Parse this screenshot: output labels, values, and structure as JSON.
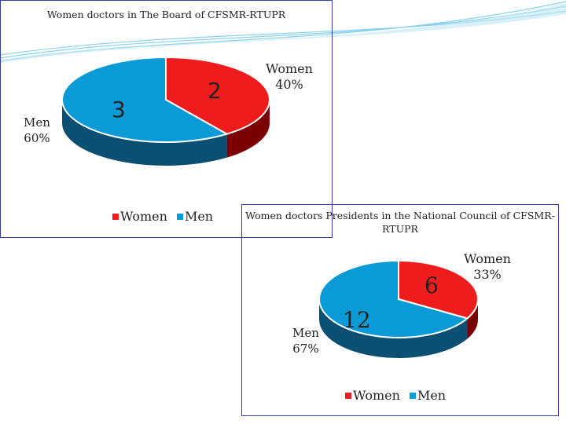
{
  "colors": {
    "women": "#ee1c1c",
    "women_side": "#7a0000",
    "men": "#0a9ad6",
    "men_side": "#0b4f72",
    "frame": "#3340a8"
  },
  "chart_data": [
    {
      "type": "pie",
      "title": "Women doctors in The Board of CFSMR-RTUPR",
      "categories": [
        "Women",
        "Men"
      ],
      "values": [
        2,
        3
      ],
      "value_labels": [
        "2",
        "3"
      ],
      "percent_labels": [
        {
          "name": "Women",
          "pct": "40%"
        },
        {
          "name": "Men",
          "pct": "60%"
        }
      ],
      "legend": [
        "Women",
        "Men"
      ],
      "legend_position": "bottom"
    },
    {
      "type": "pie",
      "title": "Women doctors Presidents in the National Council of CFSMR-RTUPR",
      "categories": [
        "Women",
        "Men"
      ],
      "values": [
        6,
        12
      ],
      "value_labels": [
        "6",
        "12"
      ],
      "percent_labels": [
        {
          "name": "Women",
          "pct": "33%"
        },
        {
          "name": "Men",
          "pct": "67%"
        }
      ],
      "legend": [
        "Women",
        "Men"
      ],
      "legend_position": "bottom"
    }
  ]
}
